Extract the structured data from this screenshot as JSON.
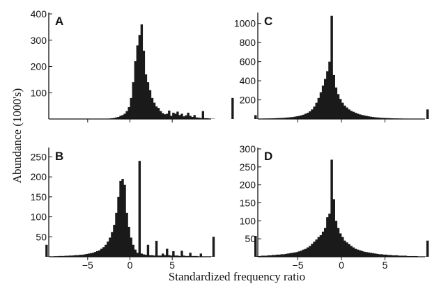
{
  "chart_data": {
    "type": "bar",
    "title": "",
    "xlabel": "Standardized frequency ratio",
    "ylabel": "Abundance (1000's)",
    "xlim": [
      -9.6,
      9.6
    ],
    "bin_width": 0.25,
    "xticks": [
      -5,
      0,
      5
    ],
    "xtick_labels": [
      "−5",
      "0",
      "5"
    ],
    "panels": [
      {
        "label": "A",
        "ylim": [
          0,
          400
        ],
        "yticks": [
          100,
          200,
          300,
          400
        ],
        "ytick_labels": [
          "100",
          "200",
          "300",
          "400"
        ],
        "values": [
          0,
          0,
          0,
          0,
          0,
          0,
          0,
          0,
          0,
          0,
          0,
          0,
          0,
          0,
          0,
          0,
          0,
          0,
          0,
          0,
          0,
          0,
          0,
          0,
          0,
          0,
          0,
          0,
          0,
          0,
          0,
          0,
          0,
          0,
          0,
          0,
          0,
          0.5,
          1,
          2,
          3,
          4,
          6,
          8,
          12,
          15,
          20,
          30,
          45,
          80,
          140,
          220,
          280,
          320,
          360,
          260,
          170,
          140,
          110,
          80,
          62,
          48,
          42,
          30,
          22,
          18,
          20,
          32,
          12,
          24,
          20,
          28,
          15,
          20,
          10,
          14,
          24,
          12,
          8,
          15,
          6,
          5,
          4,
          30,
          3,
          3,
          2,
          1,
          1,
          0,
          0,
          0,
          0,
          0,
          0,
          0,
          0,
          80
        ]
      },
      {
        "label": "B",
        "ylim": [
          0,
          270
        ],
        "yticks": [
          50,
          100,
          150,
          200,
          250
        ],
        "ytick_labels": [
          "50",
          "100",
          "150",
          "200",
          "250"
        ],
        "values": [
          30,
          1,
          1,
          1,
          1.5,
          1.5,
          2,
          2,
          2,
          2.5,
          2.5,
          3,
          3,
          3.5,
          4,
          4,
          5,
          5,
          6,
          7,
          8,
          9,
          10,
          12,
          14,
          16,
          20,
          24,
          30,
          38,
          48,
          62,
          80,
          110,
          150,
          190,
          195,
          180,
          110,
          75,
          48,
          30,
          18,
          10,
          240,
          8,
          6,
          5,
          30,
          4,
          4,
          3,
          40,
          3,
          3,
          8,
          4,
          20,
          4,
          3,
          14,
          3,
          3,
          2,
          15,
          3,
          2,
          2,
          10,
          2,
          2,
          2,
          1,
          8,
          1,
          1,
          1,
          1,
          1,
          50
        ]
      },
      {
        "label": "C",
        "ylim": [
          0,
          1100
        ],
        "yticks": [
          200,
          400,
          600,
          800,
          1000
        ],
        "ytick_labels": [
          "200",
          "400",
          "600",
          "800",
          "1000"
        ],
        "values": [
          40,
          3,
          4,
          4,
          5,
          5,
          6,
          6,
          7,
          8,
          9,
          10,
          11,
          12,
          14,
          16,
          18,
          20,
          24,
          28,
          32,
          38,
          45,
          55,
          65,
          80,
          100,
          130,
          170,
          220,
          280,
          350,
          420,
          500,
          600,
          1080,
          460,
          330,
          260,
          210,
          170,
          140,
          120,
          100,
          85,
          75,
          65,
          55,
          48,
          42,
          37,
          32,
          28,
          24,
          21,
          18,
          16,
          14,
          12,
          11,
          10,
          9,
          8,
          7,
          6,
          6,
          5,
          5,
          4,
          4,
          3,
          3,
          3,
          2,
          2,
          2,
          2,
          1,
          1,
          100
        ]
      },
      {
        "label": "D",
        "ylim": [
          0,
          300
        ],
        "yticks": [
          50,
          100,
          150,
          200,
          250,
          300
        ],
        "ytick_labels": [
          "50",
          "100",
          "150",
          "200",
          "250",
          "300"
        ],
        "values": [
          58,
          2,
          2,
          3,
          3,
          3,
          4,
          4,
          5,
          5,
          6,
          6,
          7,
          7,
          8,
          9,
          10,
          11,
          12,
          13,
          15,
          17,
          20,
          22,
          26,
          30,
          36,
          42,
          48,
          55,
          60,
          70,
          80,
          110,
          120,
          270,
          160,
          100,
          80,
          65,
          55,
          45,
          40,
          35,
          30,
          26,
          22,
          20,
          18,
          16,
          14,
          13,
          12,
          11,
          10,
          9,
          8,
          7,
          7,
          6,
          6,
          5,
          5,
          4,
          4,
          4,
          3,
          3,
          3,
          3,
          2,
          2,
          2,
          2,
          2,
          1,
          1,
          1,
          1,
          45
        ]
      }
    ]
  }
}
